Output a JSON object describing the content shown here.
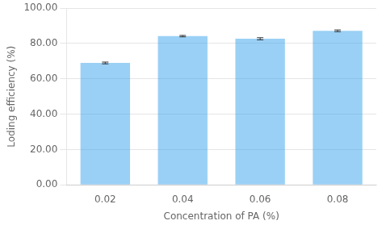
{
  "chart_data": {
    "type": "bar",
    "categories": [
      "0.02",
      "0.04",
      "0.06",
      "0.08"
    ],
    "values": [
      69.0,
      84.2,
      82.7,
      87.2
    ],
    "errors": [
      0.5,
      0.4,
      0.6,
      0.5
    ],
    "xlabel": "Concentration of PA (%)",
    "ylabel": "Loding efficiency (%)",
    "ylim": [
      0,
      100
    ],
    "yticks": [
      {
        "value": 0,
        "label": "0.00"
      },
      {
        "value": 20,
        "label": "20.00"
      },
      {
        "value": 40,
        "label": "40.00"
      },
      {
        "value": 60,
        "label": "60.00"
      },
      {
        "value": 80,
        "label": "80.00"
      },
      {
        "value": 100,
        "label": "100.00"
      }
    ],
    "grid": true
  }
}
